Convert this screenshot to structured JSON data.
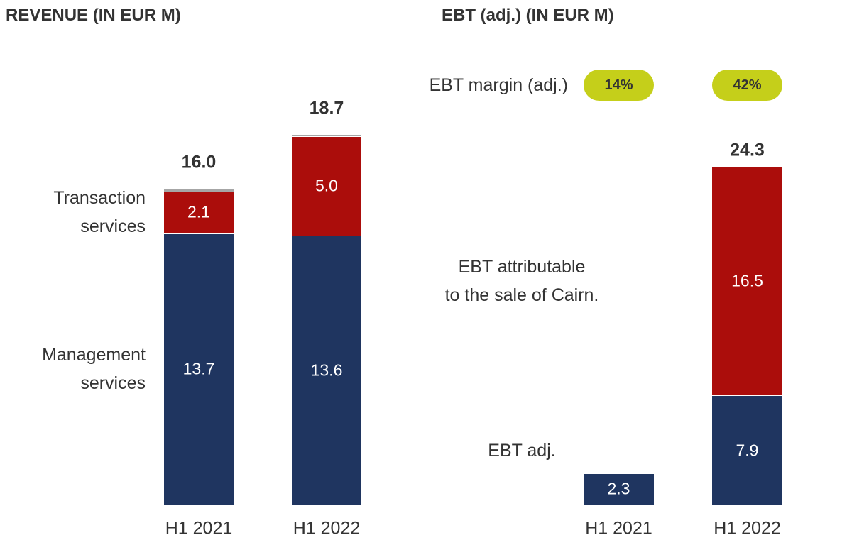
{
  "chart_data": [
    {
      "type": "bar",
      "stacked": true,
      "title": "REVENUE (IN EUR M)",
      "categories": [
        "H1 2021",
        "H1 2022"
      ],
      "series": [
        {
          "name": "Management\nservices",
          "color": "#1f3560",
          "values": [
            13.7,
            13.6
          ]
        },
        {
          "name": "Transaction\nservices",
          "color": "#ab0d0b",
          "values": [
            2.1,
            5.0
          ],
          "value_labels": [
            "2.1",
            "5.0"
          ]
        },
        {
          "color": "#a6a6a6",
          "values": [
            0.2,
            0.1
          ]
        }
      ],
      "totals": {
        "values": [
          16.0,
          18.7
        ],
        "value_labels": [
          "16.0",
          "18.7"
        ]
      }
    },
    {
      "type": "bar",
      "stacked": true,
      "title": "EBT (adj.) (IN EUR M)",
      "categories": [
        "H1 2021",
        "H1 2022"
      ],
      "series": [
        {
          "name": "EBT adj.",
          "color": "#1f3560",
          "values": [
            2.3,
            7.9
          ]
        },
        {
          "name": "EBT attributable\nto the sale of Cairn.",
          "color": "#ab0d0b",
          "values": [
            null,
            16.5
          ]
        }
      ],
      "totals": {
        "values": [
          null,
          24.3
        ]
      },
      "margin": {
        "name": "EBT margin (adj.)",
        "color": "#c5cf1a",
        "values": [
          14,
          42
        ],
        "value_labels": [
          "14%",
          "42%"
        ]
      }
    }
  ]
}
